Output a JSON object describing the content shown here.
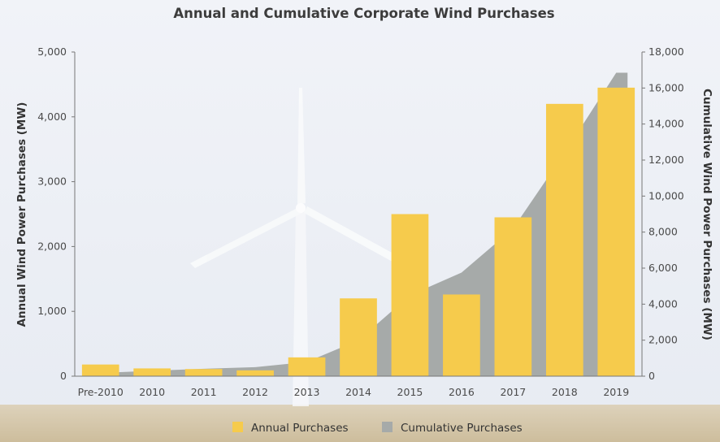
{
  "chart_data": {
    "type": "bar",
    "title": "Annual and Cumulative Corporate Wind Purchases",
    "categories": [
      "Pre-2010",
      "2010",
      "2011",
      "2012",
      "2013",
      "2014",
      "2015",
      "2016",
      "2017",
      "2018",
      "2019"
    ],
    "series": [
      {
        "name": "Annual Purchases",
        "type": "bar",
        "axis": "left",
        "color": "#f6cb4c",
        "values": [
          180,
          120,
          110,
          90,
          290,
          1200,
          2500,
          1260,
          2450,
          4200,
          4450
        ]
      },
      {
        "name": "Cumulative Purchases",
        "type": "area",
        "axis": "right",
        "color": "#a6aaa9",
        "values": [
          180,
          300,
          410,
          500,
          790,
          1990,
          4490,
          5750,
          8200,
          12400,
          16850
        ]
      }
    ],
    "ylabel": "Annual Wind Power Purchases (MW)",
    "y2label": "Cumulative Wind Power Purchases (MW)",
    "ylim": [
      0,
      5000
    ],
    "y2lim": [
      0,
      18000
    ],
    "yticks": [
      "0",
      "1,000",
      "2,000",
      "3,000",
      "4,000",
      "5,000"
    ],
    "y2ticks": [
      "0",
      "2,000",
      "4,000",
      "6,000",
      "8,000",
      "10,000",
      "12,000",
      "14,000",
      "16,000",
      "18,000"
    ],
    "legend_position": "bottom-center",
    "grid": false
  }
}
